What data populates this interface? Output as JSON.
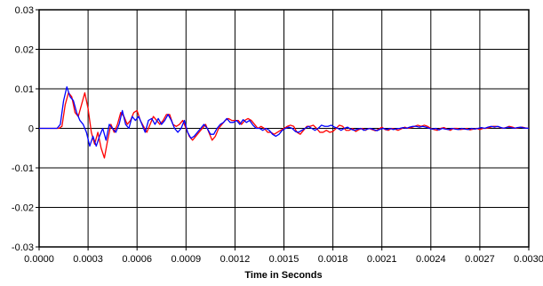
{
  "chart_data": {
    "type": "line",
    "title": "",
    "xlabel": "Time in Seconds",
    "ylabel": "",
    "xlim": [
      0,
      0.003
    ],
    "ylim": [
      -0.03,
      0.03
    ],
    "grid": true,
    "legend": "none",
    "x_ticks": [
      "0.0000",
      "0.0003",
      "0.0006",
      "0.0009",
      "0.0012",
      "0.0015",
      "0.0018",
      "0.0021",
      "0.0024",
      "0.0027",
      "0.0030"
    ],
    "y_ticks": [
      "0.03",
      "0.02",
      "0.01",
      "0",
      "-0.01",
      "-0.02",
      "-0.03"
    ],
    "series": [
      {
        "color": "#ff0000",
        "points": [
          [
            0,
            0
          ],
          [
            0.00012,
            0
          ],
          [
            0.00014,
            0.0005
          ],
          [
            0.00016,
            0.006
          ],
          [
            0.00018,
            0.009
          ],
          [
            0.0002,
            0.008
          ],
          [
            0.00022,
            0.004
          ],
          [
            0.00024,
            0.003
          ],
          [
            0.00026,
            0.006
          ],
          [
            0.00028,
            0.009
          ],
          [
            0.0003,
            0.005
          ],
          [
            0.00032,
            -0.001
          ],
          [
            0.00034,
            -0.004
          ],
          [
            0.00036,
            -0.001
          ],
          [
            0.00038,
            -0.005
          ],
          [
            0.0004,
            -0.0075
          ],
          [
            0.00042,
            -0.003
          ],
          [
            0.00044,
            0.001
          ],
          [
            0.00046,
            -0.001
          ],
          [
            0.00048,
            0.001
          ],
          [
            0.0005,
            0.004
          ],
          [
            0.00052,
            0.003
          ],
          [
            0.00054,
            0.001
          ],
          [
            0.00056,
            0.002
          ],
          [
            0.00058,
            0.004
          ],
          [
            0.0006,
            0.0045
          ],
          [
            0.00062,
            0.002
          ],
          [
            0.00064,
            0.0005
          ],
          [
            0.00066,
            -0.001
          ],
          [
            0.00068,
            0.001
          ],
          [
            0.0007,
            0.003
          ],
          [
            0.00072,
            0.002
          ],
          [
            0.00074,
            0.001
          ],
          [
            0.00076,
            0.002
          ],
          [
            0.00078,
            0.0035
          ],
          [
            0.0008,
            0.0035
          ],
          [
            0.00082,
            0.001
          ],
          [
            0.00084,
            0.0005
          ],
          [
            0.00086,
            0.001
          ],
          [
            0.00088,
            0.002
          ],
          [
            0.0009,
            0.0
          ],
          [
            0.00092,
            -0.002
          ],
          [
            0.00094,
            -0.003
          ],
          [
            0.00096,
            -0.002
          ],
          [
            0.00098,
            -0.001
          ],
          [
            0.001,
            0.0
          ],
          [
            0.00102,
            0.001
          ],
          [
            0.00104,
            -0.001
          ],
          [
            0.00106,
            -0.003
          ],
          [
            0.00108,
            -0.002
          ],
          [
            0.0011,
            0.0
          ],
          [
            0.00112,
            0.001
          ],
          [
            0.00114,
            0.002
          ],
          [
            0.00116,
            0.0025
          ],
          [
            0.00118,
            0.002
          ],
          [
            0.0012,
            0.002
          ],
          [
            0.00122,
            0.002
          ],
          [
            0.00124,
            0.001
          ],
          [
            0.00126,
            0.002
          ],
          [
            0.00128,
            0.0025
          ],
          [
            0.0013,
            0.002
          ],
          [
            0.00132,
            0.001
          ],
          [
            0.00134,
            0.0
          ],
          [
            0.00136,
            0.0005
          ],
          [
            0.00138,
            0.0
          ],
          [
            0.0014,
            -0.001
          ],
          [
            0.00142,
            -0.001
          ],
          [
            0.00144,
            -0.0015
          ],
          [
            0.00146,
            -0.001
          ],
          [
            0.00148,
            -0.0005
          ],
          [
            0.0015,
            0.0
          ],
          [
            0.00152,
            0.0005
          ],
          [
            0.00154,
            0.0008
          ],
          [
            0.00156,
            0.0005
          ],
          [
            0.00158,
            -0.001
          ],
          [
            0.0016,
            -0.0015
          ],
          [
            0.00162,
            -0.0005
          ],
          [
            0.00164,
            0.0005
          ],
          [
            0.00166,
            0.0005
          ],
          [
            0.00168,
            0.0008
          ],
          [
            0.0017,
            0.0
          ],
          [
            0.00172,
            -0.001
          ],
          [
            0.00174,
            -0.001
          ],
          [
            0.00176,
            -0.0005
          ],
          [
            0.00178,
            -0.001
          ],
          [
            0.0018,
            -0.0008
          ],
          [
            0.00182,
            0.0
          ],
          [
            0.00184,
            0.0008
          ],
          [
            0.00186,
            0.0005
          ],
          [
            0.00188,
            -0.0005
          ],
          [
            0.0019,
            -0.0005
          ],
          [
            0.00192,
            0.0
          ],
          [
            0.00194,
            -0.0008
          ],
          [
            0.00196,
            -0.0003
          ],
          [
            0.00198,
            0.0
          ],
          [
            0.002,
            -0.0005
          ],
          [
            0.00202,
            0.0
          ],
          [
            0.00204,
            -0.0003
          ],
          [
            0.00206,
            -0.0006
          ],
          [
            0.00208,
            -0.0002
          ],
          [
            0.0021,
            0.0003
          ],
          [
            0.00212,
            -0.0003
          ],
          [
            0.00214,
            -0.0005
          ],
          [
            0.00216,
            0.0
          ],
          [
            0.00218,
            -0.0002
          ],
          [
            0.0022,
            -0.0005
          ],
          [
            0.00222,
            -0.0001
          ],
          [
            0.00224,
            0.0003
          ],
          [
            0.00226,
            0.0
          ],
          [
            0.00228,
            0.0002
          ],
          [
            0.0023,
            0.0005
          ],
          [
            0.00232,
            0.0008
          ],
          [
            0.00234,
            0.0005
          ],
          [
            0.00236,
            0.0008
          ],
          [
            0.00238,
            0.0005
          ],
          [
            0.0024,
            0.0
          ],
          [
            0.00242,
            -0.0003
          ],
          [
            0.00244,
            -0.0005
          ],
          [
            0.00246,
            0.0
          ],
          [
            0.00248,
            0.0002
          ],
          [
            0.0025,
            -0.0002
          ],
          [
            0.00252,
            -0.0005
          ],
          [
            0.00254,
            0.0
          ],
          [
            0.00256,
            0.0
          ],
          [
            0.00258,
            -0.0003
          ],
          [
            0.0026,
            -0.0002
          ],
          [
            0.00262,
            0.0
          ],
          [
            0.00264,
            -0.0004
          ],
          [
            0.00266,
            -0.0002
          ],
          [
            0.00268,
            0.0
          ],
          [
            0.0027,
            -0.0003
          ],
          [
            0.00272,
            0.0
          ],
          [
            0.00274,
            0.0
          ],
          [
            0.00276,
            0.0002
          ],
          [
            0.00278,
            0.0005
          ],
          [
            0.0028,
            0.0005
          ],
          [
            0.00282,
            0.0003
          ],
          [
            0.00284,
            0.0
          ],
          [
            0.00286,
            0.0002
          ],
          [
            0.00288,
            0.0005
          ],
          [
            0.0029,
            0.0003
          ],
          [
            0.00292,
            0.0
          ],
          [
            0.00294,
            0.0002
          ],
          [
            0.00296,
            0.0003
          ],
          [
            0.00298,
            0.0001
          ],
          [
            0.003,
            0.0
          ]
        ]
      },
      {
        "color": "#0000ff",
        "points": [
          [
            0,
            0
          ],
          [
            0.00011,
            0
          ],
          [
            0.00013,
            0.001
          ],
          [
            0.00015,
            0.007
          ],
          [
            0.00017,
            0.0105
          ],
          [
            0.00019,
            0.008
          ],
          [
            0.00021,
            0.007
          ],
          [
            0.00023,
            0.004
          ],
          [
            0.00025,
            0.002
          ],
          [
            0.00027,
            0.001
          ],
          [
            0.00029,
            -0.001
          ],
          [
            0.00031,
            -0.0045
          ],
          [
            0.00033,
            -0.002
          ],
          [
            0.00035,
            -0.0045
          ],
          [
            0.00037,
            -0.002
          ],
          [
            0.00039,
            0.0
          ],
          [
            0.00041,
            -0.003
          ],
          [
            0.00043,
            0.001
          ],
          [
            0.00045,
            0.0
          ],
          [
            0.00047,
            -0.001
          ],
          [
            0.00049,
            0.001
          ],
          [
            0.00051,
            0.0045
          ],
          [
            0.00053,
            0.001
          ],
          [
            0.00055,
            0.0
          ],
          [
            0.00057,
            0.003
          ],
          [
            0.00059,
            0.002
          ],
          [
            0.00061,
            0.003
          ],
          [
            0.00063,
            0.001
          ],
          [
            0.00065,
            -0.001
          ],
          [
            0.00067,
            0.002
          ],
          [
            0.00069,
            0.0025
          ],
          [
            0.00071,
            0.001
          ],
          [
            0.00073,
            0.0025
          ],
          [
            0.00075,
            0.001
          ],
          [
            0.00077,
            0.002
          ],
          [
            0.00079,
            0.0035
          ],
          [
            0.00081,
            0.002
          ],
          [
            0.00083,
            0.0
          ],
          [
            0.00085,
            -0.001
          ],
          [
            0.00087,
            0.0
          ],
          [
            0.00089,
            0.002
          ],
          [
            0.00091,
            -0.001
          ],
          [
            0.00093,
            -0.0025
          ],
          [
            0.00095,
            -0.002
          ],
          [
            0.00097,
            -0.001
          ],
          [
            0.00099,
            0.0
          ],
          [
            0.00101,
            0.001
          ],
          [
            0.00103,
            0.0
          ],
          [
            0.00105,
            -0.0015
          ],
          [
            0.00107,
            -0.0015
          ],
          [
            0.00109,
            0.0
          ],
          [
            0.00111,
            0.001
          ],
          [
            0.00113,
            0.0015
          ],
          [
            0.00115,
            0.0025
          ],
          [
            0.00117,
            0.0015
          ],
          [
            0.00119,
            0.0015
          ],
          [
            0.00121,
            0.002
          ],
          [
            0.00123,
            0.001
          ],
          [
            0.00125,
            0.0022
          ],
          [
            0.00127,
            0.0015
          ],
          [
            0.00129,
            0.002
          ],
          [
            0.00131,
            0.0008
          ],
          [
            0.00133,
            0.0
          ],
          [
            0.00135,
            0.0
          ],
          [
            0.00137,
            -0.0005
          ],
          [
            0.00139,
            0.0
          ],
          [
            0.00141,
            -0.0005
          ],
          [
            0.00143,
            -0.0015
          ],
          [
            0.00145,
            -0.002
          ],
          [
            0.00147,
            -0.0015
          ],
          [
            0.00149,
            -0.0005
          ],
          [
            0.00151,
            0.0
          ],
          [
            0.00153,
            0.0003
          ],
          [
            0.00155,
            0.0
          ],
          [
            0.00157,
            -0.0008
          ],
          [
            0.00159,
            -0.001
          ],
          [
            0.00161,
            -0.0005
          ],
          [
            0.00163,
            0.0
          ],
          [
            0.00165,
            0.0005
          ],
          [
            0.00167,
            0.0
          ],
          [
            0.00169,
            -0.0005
          ],
          [
            0.00171,
            0.0
          ],
          [
            0.00173,
            0.0008
          ],
          [
            0.00175,
            0.0005
          ],
          [
            0.00177,
            0.0005
          ],
          [
            0.00179,
            0.0008
          ],
          [
            0.00181,
            0.0003
          ],
          [
            0.00183,
            0.0
          ],
          [
            0.00185,
            -0.0005
          ],
          [
            0.00187,
            0.0
          ],
          [
            0.00189,
            0.0003
          ],
          [
            0.00191,
            -0.0002
          ],
          [
            0.00193,
            -0.0005
          ],
          [
            0.00195,
            -0.0002
          ],
          [
            0.00197,
            0.0
          ],
          [
            0.00199,
            -0.0005
          ],
          [
            0.00201,
            -0.0002
          ],
          [
            0.00203,
            0.0
          ],
          [
            0.00205,
            -0.0003
          ],
          [
            0.00207,
            -0.0006
          ],
          [
            0.00209,
            -0.0002
          ],
          [
            0.00211,
            0.0
          ],
          [
            0.00213,
            -0.0003
          ],
          [
            0.00215,
            0.0
          ],
          [
            0.00217,
            -0.0003
          ],
          [
            0.00219,
            -0.0001
          ],
          [
            0.00221,
            0.0
          ],
          [
            0.00223,
            0.0002
          ],
          [
            0.00225,
            0.0
          ],
          [
            0.00227,
            0.0003
          ],
          [
            0.00229,
            0.0005
          ],
          [
            0.00231,
            0.0005
          ],
          [
            0.00233,
            0.0003
          ],
          [
            0.00235,
            0.0005
          ],
          [
            0.00237,
            0.0003
          ],
          [
            0.00239,
            0.0
          ],
          [
            0.00241,
            -0.0002
          ],
          [
            0.00243,
            0.0
          ],
          [
            0.00245,
            -0.0004
          ],
          [
            0.00247,
            0.0
          ],
          [
            0.00249,
            -0.0002
          ],
          [
            0.00251,
            -0.0003
          ],
          [
            0.00253,
            0.0
          ],
          [
            0.00255,
            -0.0002
          ],
          [
            0.00257,
            -0.0003
          ],
          [
            0.00259,
            0.0
          ],
          [
            0.00261,
            -0.0002
          ],
          [
            0.00263,
            -0.0003
          ],
          [
            0.00265,
            0.0
          ],
          [
            0.00267,
            -0.0002
          ],
          [
            0.00269,
            0.0
          ],
          [
            0.00271,
            0.0002
          ],
          [
            0.00273,
            0.0
          ],
          [
            0.00275,
            0.0003
          ],
          [
            0.00277,
            0.0005
          ],
          [
            0.00279,
            0.0003
          ],
          [
            0.00281,
            0.0005
          ],
          [
            0.00283,
            0.0002
          ],
          [
            0.00285,
            0.0
          ],
          [
            0.00287,
            0.0003
          ],
          [
            0.00289,
            0.0002
          ],
          [
            0.00291,
            0.0
          ],
          [
            0.00293,
            0.0002
          ],
          [
            0.00295,
            0.0003
          ],
          [
            0.00297,
            0.0001
          ],
          [
            0.003,
            0.0
          ]
        ]
      }
    ]
  }
}
